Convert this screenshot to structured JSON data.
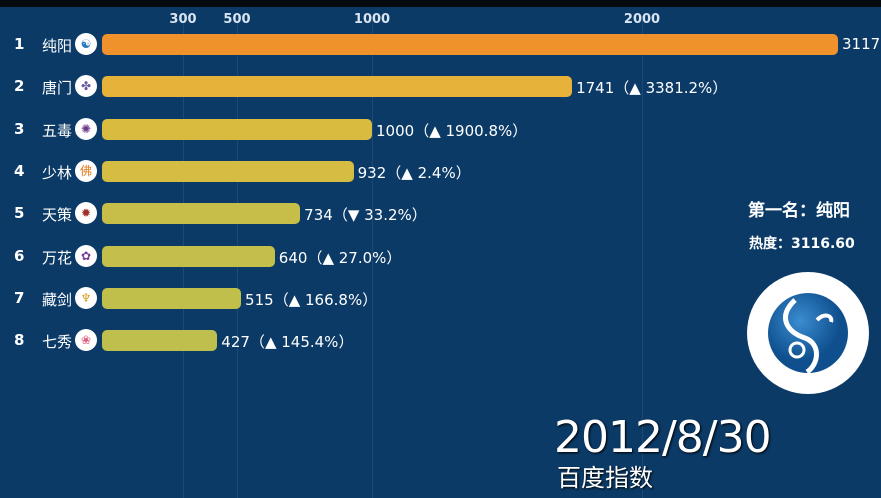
{
  "chart_data": {
    "type": "bar",
    "orientation": "horizontal",
    "date": "2012/8/30",
    "source": "百度指数",
    "x_ticks": [
      300,
      500,
      1000,
      2000
    ],
    "categories": [
      "纯阳",
      "唐门",
      "五毒",
      "少林",
      "天策",
      "万花",
      "藏剑",
      "七秀"
    ],
    "values": [
      3117,
      1741,
      1000,
      932,
      734,
      640,
      515,
      427
    ],
    "changes": [
      null,
      "▲ 3381.2%",
      "▲ 1900.8%",
      "▲ 2.4%",
      "▼ 33.2%",
      "▲ 27.0%",
      "▲ 166.8%",
      "▲ 145.4%"
    ],
    "icons": [
      "chunyang-emblem-icon",
      "tangmen-emblem-icon",
      "wudu-emblem-icon",
      "shaolin-fo-icon",
      "tiance-emblem-icon",
      "wanhua-emblem-icon",
      "cangjian-emblem-icon",
      "qixiu-fan-icon"
    ],
    "colors": [
      "#f0922c",
      "#e6b23a",
      "#d9bb40",
      "#d4bd42",
      "#c6be48",
      "#c3bf4a",
      "#c0bf4c",
      "#bfbf4e"
    ],
    "grid": true
  },
  "leader": {
    "label": "第一名：纯阳",
    "heat": "热度：3116.60"
  },
  "logo_icon": "chunyang-taiji-logo"
}
